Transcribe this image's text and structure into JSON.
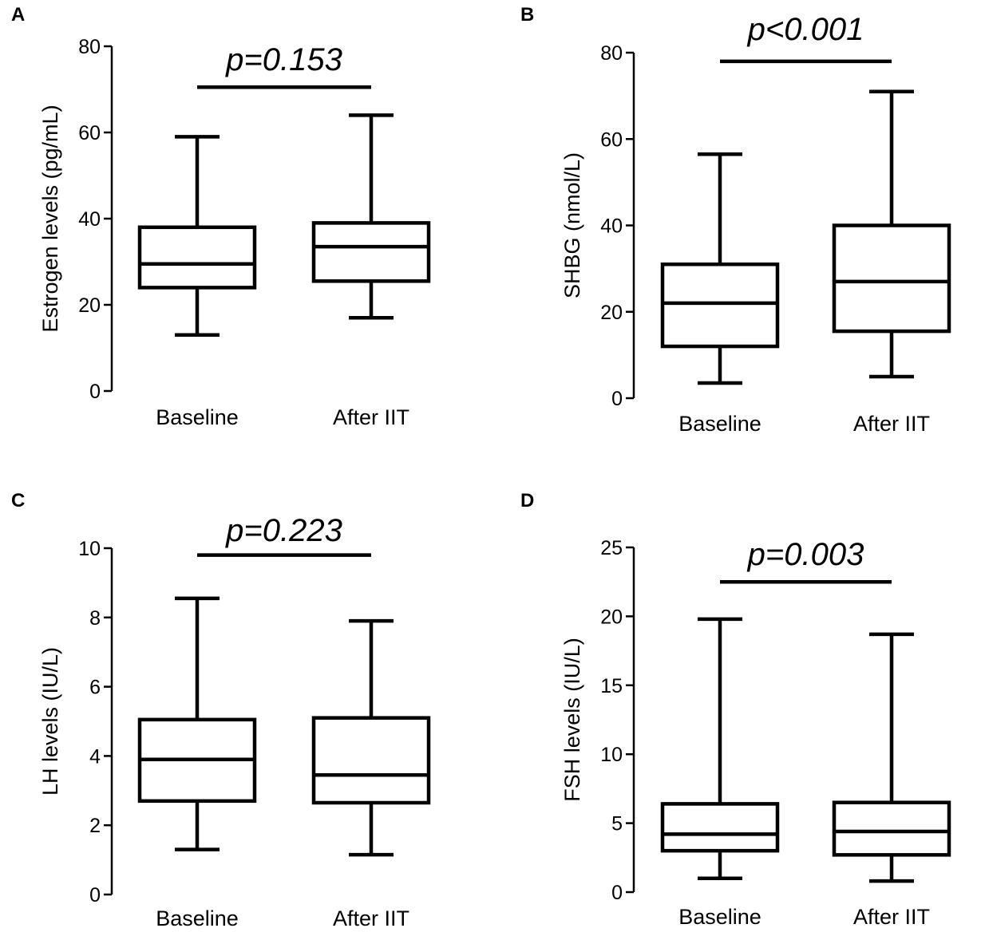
{
  "chart_data": [
    {
      "type": "box",
      "panel": "A",
      "ylabel": "Estrogen levels (pg/mL)",
      "ylim": [
        0,
        80
      ],
      "yticks": [
        "0",
        "20",
        "40",
        "60",
        "80"
      ],
      "categories": [
        "Baseline",
        "After IIT"
      ],
      "boxes": [
        {
          "category": "Baseline",
          "min": 13,
          "q1": 24,
          "median": 29.5,
          "q3": 38,
          "max": 59
        },
        {
          "category": "After IIT",
          "min": 17,
          "q1": 25.5,
          "median": 33.5,
          "q3": 39,
          "max": 64
        }
      ],
      "annotation": "p=0.153",
      "bracket_value": 70.5
    },
    {
      "type": "box",
      "panel": "B",
      "ylabel": "SHBG (nmol/L)",
      "ylim": [
        0,
        80
      ],
      "yticks": [
        "0",
        "20",
        "40",
        "60",
        "80"
      ],
      "categories": [
        "Baseline",
        "After IIT"
      ],
      "boxes": [
        {
          "category": "Baseline",
          "min": 3.5,
          "q1": 12,
          "median": 22,
          "q3": 31,
          "max": 56.5
        },
        {
          "category": "After IIT",
          "min": 5,
          "q1": 15.5,
          "median": 27,
          "q3": 40,
          "max": 71
        }
      ],
      "annotation": "p<0.001",
      "bracket_value": 78
    },
    {
      "type": "box",
      "panel": "C",
      "ylabel": "LH levels (IU/L)",
      "ylim": [
        0,
        10
      ],
      "yticks": [
        "0",
        "2",
        "4",
        "6",
        "8",
        "10"
      ],
      "categories": [
        "Baseline",
        "After IIT"
      ],
      "boxes": [
        {
          "category": "Baseline",
          "min": 1.3,
          "q1": 2.7,
          "median": 3.9,
          "q3": 5.05,
          "max": 8.55
        },
        {
          "category": "After IIT",
          "min": 1.15,
          "q1": 2.65,
          "median": 3.45,
          "q3": 5.1,
          "max": 7.9
        }
      ],
      "annotation": "p=0.223",
      "bracket_value": 9.8
    },
    {
      "type": "box",
      "panel": "D",
      "ylabel": "FSH levels (IU/L)",
      "ylim": [
        0,
        25
      ],
      "yticks": [
        "0",
        "5",
        "10",
        "15",
        "20",
        "25"
      ],
      "categories": [
        "Baseline",
        "After IIT"
      ],
      "boxes": [
        {
          "category": "Baseline",
          "min": 1,
          "q1": 3,
          "median": 4.2,
          "q3": 6.4,
          "max": 19.8
        },
        {
          "category": "After IIT",
          "min": 0.8,
          "q1": 2.7,
          "median": 4.4,
          "q3": 6.5,
          "max": 18.7
        }
      ],
      "annotation": "p=0.003",
      "bracket_value": 22.5
    }
  ]
}
